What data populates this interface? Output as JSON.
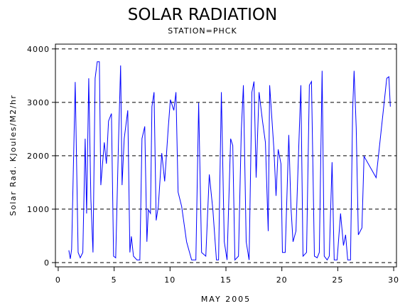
{
  "chart_data": {
    "type": "line",
    "title": "SOLAR RADIATION",
    "subtitle": "STATION=PHCK",
    "x_label": "MAY 2005",
    "y_label": "Solar Rad. KJoules/M2/hr",
    "color": "#0000ff",
    "grid": true,
    "xlim": [
      -0.25,
      30.25
    ],
    "ylim": [
      -80,
      4090
    ],
    "xticks": [
      0,
      5,
      10,
      15,
      20,
      25,
      30
    ],
    "yticks": [
      0,
      1000,
      2000,
      3000,
      4000
    ],
    "x": [
      0.95,
      1.08,
      1.2,
      1.52,
      1.78,
      1.97,
      2.2,
      2.41,
      2.54,
      2.73,
      2.92,
      3.11,
      3.3,
      3.49,
      3.68,
      3.81,
      4.12,
      4.31,
      4.5,
      4.76,
      4.95,
      5.14,
      5.39,
      5.58,
      5.71,
      5.9,
      6.22,
      6.41,
      6.54,
      6.73,
      7.04,
      7.3,
      7.49,
      7.74,
      7.93,
      8.06,
      8.25,
      8.38,
      8.57,
      8.76,
      8.95,
      9.26,
      9.52,
      9.84,
      10.03,
      10.34,
      10.53,
      10.72,
      11.04,
      11.48,
      11.93,
      12.31,
      12.56,
      12.82,
      13.2,
      13.51,
      13.83,
      14.15,
      14.34,
      14.59,
      14.85,
      15.1,
      15.42,
      15.61,
      15.8,
      16.12,
      16.37,
      16.56,
      16.81,
      17.07,
      17.32,
      17.51,
      17.7,
      17.96,
      18.27,
      18.53,
      18.78,
      18.91,
      19.29,
      19.48,
      19.67,
      19.92,
      20.05,
      20.3,
      20.62,
      20.81,
      21.0,
      21.26,
      21.45,
      21.7,
      21.89,
      22.21,
      22.46,
      22.65,
      22.91,
      23.16,
      23.35,
      23.6,
      23.79,
      24.05,
      24.24,
      24.49,
      24.68,
      24.94,
      25.25,
      25.51,
      25.7,
      25.89,
      26.14,
      26.33,
      26.46,
      26.65,
      26.84,
      27.16,
      27.35,
      28.43,
      29.38,
      29.57,
      29.7
    ],
    "values": [
      230,
      70,
      250,
      3380,
      190,
      90,
      190,
      2320,
      920,
      3450,
      1190,
      190,
      3450,
      3760,
      3760,
      1450,
      2250,
      1850,
      2650,
      2790,
      120,
      90,
      2250,
      3690,
      1450,
      2320,
      2850,
      190,
      490,
      120,
      50,
      50,
      2320,
      2550,
      390,
      990,
      920,
      2920,
      3190,
      790,
      1050,
      2050,
      1520,
      2520,
      3050,
      2850,
      3190,
      1320,
      1050,
      390,
      50,
      50,
      2990,
      190,
      120,
      1650,
      990,
      50,
      50,
      3190,
      390,
      50,
      2320,
      2190,
      50,
      120,
      2450,
      3320,
      390,
      50,
      3190,
      3390,
      1590,
      3190,
      2650,
      2250,
      590,
      3320,
      2120,
      1250,
      2120,
      1850,
      190,
      190,
      2390,
      1050,
      390,
      590,
      1790,
      3320,
      120,
      190,
      3320,
      3390,
      120,
      90,
      190,
      3590,
      120,
      50,
      120,
      1880,
      50,
      50,
      920,
      320,
      520,
      50,
      50,
      2850,
      3590,
      2520,
      520,
      650,
      1990,
      1590,
      3450,
      3480,
      2920
    ]
  }
}
